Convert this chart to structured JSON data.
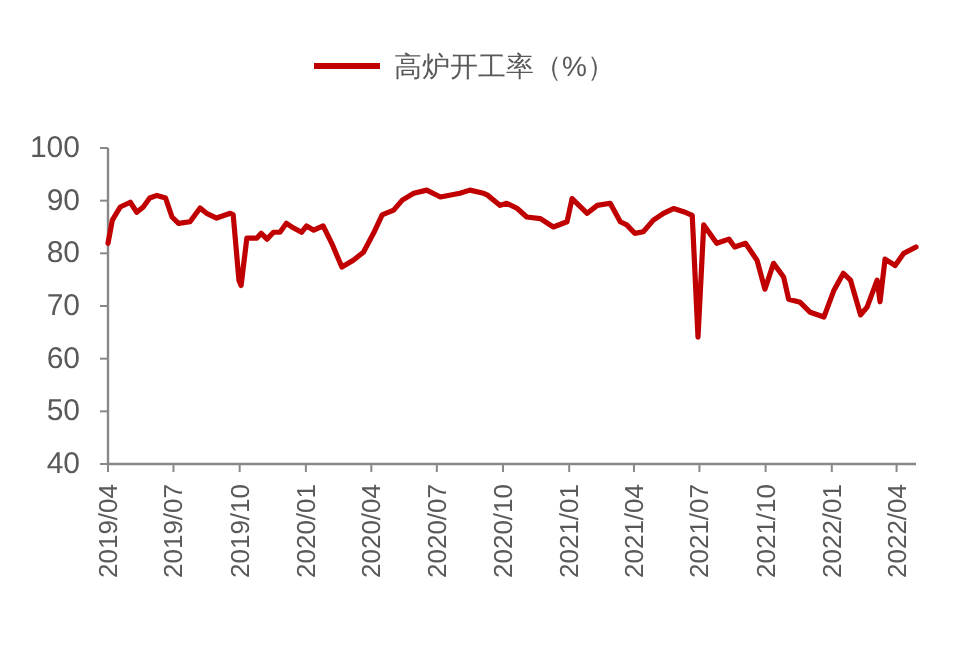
{
  "chart_data": {
    "type": "line",
    "legend": "top",
    "grid": false,
    "xlim": [
      "2019-04-01",
      "2022-04-28"
    ],
    "xticks": [
      {
        "value": "2019-04-01",
        "label": "2019/04"
      },
      {
        "value": "2019-07-01",
        "label": "2019/07"
      },
      {
        "value": "2019-10-01",
        "label": "2019/10"
      },
      {
        "value": "2020-01-01",
        "label": "2020/01"
      },
      {
        "value": "2020-04-01",
        "label": "2020/04"
      },
      {
        "value": "2020-07-01",
        "label": "2020/07"
      },
      {
        "value": "2020-10-01",
        "label": "2020/10"
      },
      {
        "value": "2021-01-01",
        "label": "2021/01"
      },
      {
        "value": "2021-04-01",
        "label": "2021/04"
      },
      {
        "value": "2021-07-01",
        "label": "2021/07"
      },
      {
        "value": "2021-10-01",
        "label": "2021/10"
      },
      {
        "value": "2022-01-01",
        "label": "2022/01"
      },
      {
        "value": "2022-04-01",
        "label": "2022/04"
      }
    ],
    "ylim": [
      40,
      100
    ],
    "yticks": [
      40,
      50,
      60,
      70,
      80,
      90,
      100
    ],
    "series": [
      {
        "name": "高炉开工率（%）",
        "color": "#c00000",
        "x": [
          "2019-04-01",
          "2019-04-07",
          "2019-04-18",
          "2019-05-02",
          "2019-05-11",
          "2019-05-20",
          "2019-05-29",
          "2019-06-08",
          "2019-06-20",
          "2019-06-29",
          "2019-07-08",
          "2019-07-24",
          "2019-08-07",
          "2019-08-16",
          "2019-08-30",
          "2019-09-18",
          "2019-09-22",
          "2019-09-30",
          "2019-10-03",
          "2019-10-11",
          "2019-10-25",
          "2019-10-31",
          "2019-11-08",
          "2019-11-17",
          "2019-11-26",
          "2019-12-05",
          "2019-12-15",
          "2019-12-26",
          "2020-01-02",
          "2020-01-12",
          "2020-01-25",
          "2020-02-06",
          "2020-02-20",
          "2020-03-07",
          "2020-03-21",
          "2020-04-04",
          "2020-04-16",
          "2020-05-02",
          "2020-05-14",
          "2020-05-30",
          "2020-06-17",
          "2020-07-06",
          "2020-08-02",
          "2020-08-16",
          "2020-09-04",
          "2020-09-09",
          "2020-09-27",
          "2020-10-06",
          "2020-10-20",
          "2020-11-03",
          "2020-11-22",
          "2020-12-10",
          "2020-12-29",
          "2021-01-05",
          "2021-01-26",
          "2021-02-09",
          "2021-02-27",
          "2021-03-13",
          "2021-03-22",
          "2021-04-02",
          "2021-04-14",
          "2021-04-28",
          "2021-05-12",
          "2021-05-26",
          "2021-06-09",
          "2021-06-21",
          "2021-06-29",
          "2021-07-07",
          "2021-07-25",
          "2021-08-11",
          "2021-08-19",
          "2021-09-03",
          "2021-09-19",
          "2021-09-30",
          "2021-10-12",
          "2021-10-26",
          "2021-11-02",
          "2021-11-18",
          "2021-12-02",
          "2021-12-21",
          "2022-01-04",
          "2022-01-17",
          "2022-01-27",
          "2022-02-10",
          "2022-02-19",
          "2022-03-05",
          "2022-03-09",
          "2022-03-16",
          "2022-03-30",
          "2022-04-11",
          "2022-04-28"
        ],
        "values": [
          81.9,
          86.3,
          88.8,
          89.7,
          87.8,
          88.8,
          90.5,
          91,
          90.5,
          86.9,
          85.7,
          86,
          88.6,
          87.6,
          86.7,
          87.6,
          87.3,
          74.9,
          73.9,
          82.9,
          82.9,
          83.8,
          82.7,
          84,
          84,
          85.7,
          84.8,
          84,
          85.2,
          84.4,
          85.2,
          81.9,
          77.4,
          78.7,
          80.2,
          83.8,
          87.3,
          88.2,
          90.1,
          91.4,
          92,
          90.7,
          91.4,
          92,
          91.4,
          91.1,
          89.1,
          89.5,
          88.6,
          86.9,
          86.6,
          85,
          86,
          90.4,
          87.6,
          89.1,
          89.5,
          86,
          85.4,
          83.8,
          84.1,
          86.3,
          87.6,
          88.5,
          87.9,
          87.2,
          64.1,
          85.4,
          81.9,
          82.7,
          81.2,
          81.9,
          78.7,
          73.2,
          78.1,
          75.5,
          71.3,
          70.7,
          68.8,
          67.9,
          73,
          76.2,
          74.9,
          68.3,
          69.8,
          74.9,
          70.8,
          78.9,
          77.7,
          80,
          81.2
        ]
      }
    ]
  }
}
